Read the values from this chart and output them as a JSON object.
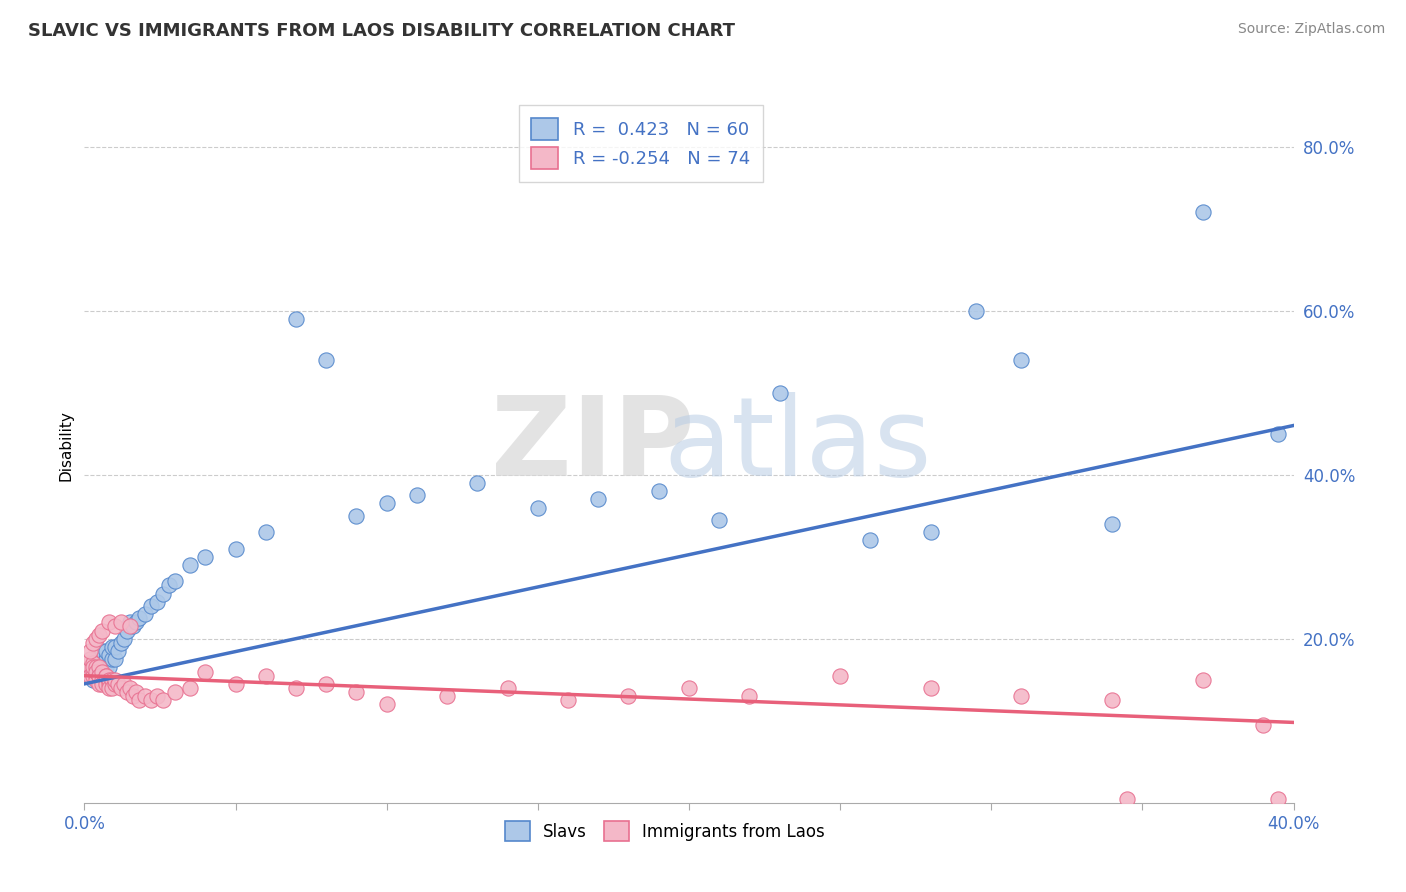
{
  "title": "SLAVIC VS IMMIGRANTS FROM LAOS DISABILITY CORRELATION CHART",
  "source": "Source: ZipAtlas.com",
  "ylabel": "Disability",
  "xlim": [
    0.0,
    0.4
  ],
  "ylim": [
    0.0,
    0.87
  ],
  "x_tick_positions": [
    0.0,
    0.05,
    0.1,
    0.15,
    0.2,
    0.25,
    0.3,
    0.35,
    0.4
  ],
  "x_tick_labels": [
    "0.0%",
    "",
    "",
    "",
    "",
    "",
    "",
    "",
    "40.0%"
  ],
  "y_ticks_right": [
    0.0,
    0.2,
    0.4,
    0.6,
    0.8
  ],
  "y_tick_labels_right": [
    "",
    "20.0%",
    "40.0%",
    "60.0%",
    "80.0%"
  ],
  "slavs_R": 0.423,
  "slavs_N": 60,
  "laos_R": -0.254,
  "laos_N": 74,
  "slavs_color": "#adc8e8",
  "slavs_edge_color": "#5588cc",
  "slavs_line_color": "#4472c4",
  "laos_color": "#f4b8c8",
  "laos_edge_color": "#e87090",
  "laos_line_color": "#e8607a",
  "legend_text_color": "#4472c4",
  "background_color": "#ffffff",
  "grid_color": "#cccccc",
  "slavs_x": [
    0.001,
    0.002,
    0.002,
    0.003,
    0.003,
    0.003,
    0.004,
    0.004,
    0.004,
    0.005,
    0.005,
    0.005,
    0.006,
    0.006,
    0.006,
    0.007,
    0.007,
    0.007,
    0.008,
    0.008,
    0.009,
    0.009,
    0.01,
    0.01,
    0.011,
    0.012,
    0.013,
    0.014,
    0.015,
    0.016,
    0.017,
    0.018,
    0.02,
    0.022,
    0.024,
    0.026,
    0.028,
    0.03,
    0.035,
    0.04,
    0.05,
    0.06,
    0.07,
    0.08,
    0.09,
    0.1,
    0.11,
    0.13,
    0.15,
    0.17,
    0.19,
    0.21,
    0.23,
    0.26,
    0.28,
    0.295,
    0.31,
    0.34,
    0.37,
    0.395
  ],
  "slavs_y": [
    0.155,
    0.16,
    0.165,
    0.15,
    0.16,
    0.17,
    0.155,
    0.165,
    0.175,
    0.155,
    0.165,
    0.175,
    0.16,
    0.17,
    0.185,
    0.165,
    0.175,
    0.185,
    0.165,
    0.18,
    0.175,
    0.19,
    0.175,
    0.19,
    0.185,
    0.195,
    0.2,
    0.21,
    0.22,
    0.215,
    0.22,
    0.225,
    0.23,
    0.24,
    0.245,
    0.255,
    0.265,
    0.27,
    0.29,
    0.3,
    0.31,
    0.33,
    0.59,
    0.54,
    0.35,
    0.365,
    0.375,
    0.39,
    0.36,
    0.37,
    0.38,
    0.345,
    0.5,
    0.32,
    0.33,
    0.6,
    0.54,
    0.34,
    0.72,
    0.45
  ],
  "laos_x": [
    0.001,
    0.001,
    0.002,
    0.002,
    0.002,
    0.003,
    0.003,
    0.003,
    0.003,
    0.004,
    0.004,
    0.004,
    0.004,
    0.005,
    0.005,
    0.005,
    0.005,
    0.006,
    0.006,
    0.006,
    0.007,
    0.007,
    0.007,
    0.008,
    0.008,
    0.008,
    0.009,
    0.009,
    0.01,
    0.01,
    0.011,
    0.012,
    0.013,
    0.014,
    0.015,
    0.016,
    0.017,
    0.018,
    0.02,
    0.022,
    0.024,
    0.026,
    0.03,
    0.035,
    0.04,
    0.05,
    0.06,
    0.07,
    0.08,
    0.09,
    0.1,
    0.12,
    0.14,
    0.16,
    0.18,
    0.2,
    0.22,
    0.25,
    0.28,
    0.31,
    0.34,
    0.37,
    0.39,
    0.002,
    0.003,
    0.004,
    0.005,
    0.006,
    0.008,
    0.01,
    0.012,
    0.015,
    0.345,
    0.395
  ],
  "laos_y": [
    0.16,
    0.17,
    0.165,
    0.175,
    0.155,
    0.16,
    0.17,
    0.155,
    0.165,
    0.155,
    0.165,
    0.15,
    0.16,
    0.155,
    0.165,
    0.145,
    0.155,
    0.15,
    0.16,
    0.145,
    0.155,
    0.145,
    0.155,
    0.145,
    0.15,
    0.14,
    0.15,
    0.14,
    0.145,
    0.15,
    0.145,
    0.14,
    0.145,
    0.135,
    0.14,
    0.13,
    0.135,
    0.125,
    0.13,
    0.125,
    0.13,
    0.125,
    0.135,
    0.14,
    0.16,
    0.145,
    0.155,
    0.14,
    0.145,
    0.135,
    0.12,
    0.13,
    0.14,
    0.125,
    0.13,
    0.14,
    0.13,
    0.155,
    0.14,
    0.13,
    0.125,
    0.15,
    0.095,
    0.185,
    0.195,
    0.2,
    0.205,
    0.21,
    0.22,
    0.215,
    0.22,
    0.215,
    0.005,
    0.005
  ],
  "slavs_trendline": [
    0.145,
    0.46
  ],
  "laos_trendline": [
    0.155,
    0.098
  ]
}
